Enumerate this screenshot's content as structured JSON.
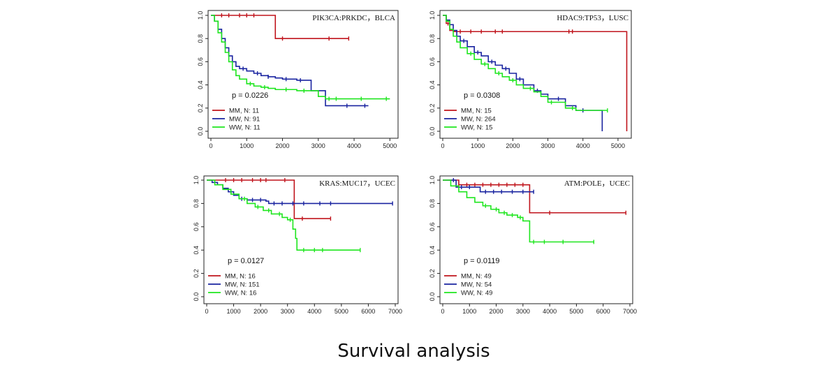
{
  "caption": "Survival analysis",
  "colors": {
    "MM": "#c0141c",
    "MW": "#1a24a0",
    "WW": "#1ee61e",
    "axis": "#222222"
  },
  "chart_data": [
    {
      "type": "line",
      "title": "PIK3CA:PRKDC，BLCA",
      "p_value": "p = 0.0226",
      "xlim": [
        0,
        5000
      ],
      "xticks": [
        0,
        1000,
        2000,
        3000,
        4000,
        5000
      ],
      "ylim": [
        0,
        1
      ],
      "yticks": [
        "0.0",
        "0.2",
        "0.4",
        "0.6",
        "0.8",
        "1.0"
      ],
      "legend": [
        "MM, N: 11",
        "MW, N: 91",
        "WW, N: 11"
      ],
      "series": [
        {
          "key": "MM",
          "x": [
            0,
            1800,
            1800,
            3850
          ],
          "y": [
            1.0,
            1.0,
            0.8,
            0.8
          ],
          "censor_x": [
            300,
            500,
            800,
            1000,
            1200,
            2000,
            3300,
            3850
          ]
        },
        {
          "key": "MW",
          "x": [
            0,
            100,
            200,
            300,
            400,
            500,
            600,
            700,
            800,
            1000,
            1200,
            1400,
            1600,
            1800,
            2000,
            2400,
            2800,
            3000,
            3200,
            3400,
            4400
          ],
          "y": [
            1.0,
            0.95,
            0.88,
            0.8,
            0.72,
            0.65,
            0.6,
            0.56,
            0.54,
            0.52,
            0.5,
            0.48,
            0.47,
            0.46,
            0.45,
            0.44,
            0.35,
            0.35,
            0.22,
            0.22,
            0.22
          ],
          "censor_x": [
            900,
            1300,
            1600,
            2100,
            2500,
            3800,
            4300
          ]
        },
        {
          "key": "WW",
          "x": [
            0,
            100,
            200,
            300,
            400,
            500,
            600,
            700,
            800,
            1000,
            1200,
            1400,
            1600,
            1800,
            2000,
            2400,
            2800,
            3000,
            3200,
            3400,
            5000
          ],
          "y": [
            1.0,
            0.95,
            0.85,
            0.77,
            0.68,
            0.6,
            0.53,
            0.48,
            0.45,
            0.41,
            0.39,
            0.38,
            0.37,
            0.36,
            0.36,
            0.35,
            0.35,
            0.3,
            0.28,
            0.28,
            0.28
          ],
          "censor_x": [
            1100,
            1500,
            2100,
            2600,
            3300,
            3500,
            4200,
            4900
          ]
        }
      ]
    },
    {
      "type": "line",
      "title": "HDAC9:TP53，LUSC",
      "p_value": "p = 0.0308",
      "xlim": [
        0,
        5000
      ],
      "xticks": [
        0,
        1000,
        2000,
        3000,
        4000,
        5000
      ],
      "ylim": [
        0,
        1
      ],
      "yticks": [
        "0.0",
        "0.2",
        "0.4",
        "0.6",
        "0.8",
        "1.0"
      ],
      "legend": [
        "MM, N: 15",
        "MW, N: 264",
        "WW, N: 15"
      ],
      "series": [
        {
          "key": "MM",
          "x": [
            0,
            100,
            200,
            300,
            300,
            5250,
            5250
          ],
          "y": [
            1.0,
            0.93,
            0.87,
            0.87,
            0.86,
            0.86,
            0.0
          ],
          "censor_x": [
            150,
            500,
            800,
            1100,
            1500,
            1700,
            3600,
            3700
          ]
        },
        {
          "key": "MW",
          "x": [
            0,
            100,
            200,
            300,
            400,
            500,
            700,
            900,
            1100,
            1300,
            1500,
            1700,
            1900,
            2100,
            2300,
            2600,
            2800,
            3000,
            3500,
            3800,
            4500,
            4550,
            4550
          ],
          "y": [
            1.0,
            0.96,
            0.92,
            0.87,
            0.82,
            0.78,
            0.73,
            0.68,
            0.65,
            0.6,
            0.57,
            0.54,
            0.5,
            0.45,
            0.4,
            0.35,
            0.32,
            0.28,
            0.22,
            0.18,
            0.18,
            0.18,
            0.0
          ],
          "censor_x": [
            600,
            1000,
            1400,
            1800,
            2200,
            2700,
            3300,
            4000
          ]
        },
        {
          "key": "WW",
          "x": [
            0,
            100,
            200,
            300,
            400,
            500,
            700,
            900,
            1100,
            1300,
            1500,
            1700,
            1900,
            2100,
            2300,
            2600,
            2800,
            3000,
            3500,
            3800,
            4700
          ],
          "y": [
            1.0,
            0.95,
            0.88,
            0.82,
            0.77,
            0.72,
            0.67,
            0.62,
            0.58,
            0.54,
            0.5,
            0.47,
            0.44,
            0.4,
            0.37,
            0.34,
            0.3,
            0.25,
            0.2,
            0.18,
            0.18
          ],
          "censor_x": [
            800,
            1200,
            1600,
            2000,
            2500,
            3100,
            3700,
            4700
          ]
        }
      ]
    },
    {
      "type": "line",
      "title": "KRAS:MUC17，UCEC",
      "p_value": "p = 0.0127",
      "xlim": [
        0,
        7000
      ],
      "xticks": [
        0,
        1000,
        2000,
        3000,
        4000,
        5000,
        6000,
        7000
      ],
      "ylim": [
        0,
        1
      ],
      "yticks": [
        "0.0",
        "0.2",
        "0.4",
        "0.6",
        "0.8",
        "1.0"
      ],
      "legend": [
        "MM, N: 16",
        "MW, N: 151",
        "WW, N: 16"
      ],
      "series": [
        {
          "key": "MM",
          "x": [
            0,
            3250,
            3250,
            3500,
            4600
          ],
          "y": [
            1.0,
            1.0,
            0.67,
            0.67,
            0.67
          ],
          "censor_x": [
            700,
            1000,
            1300,
            1700,
            2000,
            2200,
            2900,
            3550,
            4600
          ]
        },
        {
          "key": "MW",
          "x": [
            0,
            200,
            400,
            600,
            800,
            1000,
            1200,
            1500,
            2200,
            2300,
            6900
          ],
          "y": [
            1.0,
            0.98,
            0.96,
            0.93,
            0.9,
            0.87,
            0.84,
            0.83,
            0.82,
            0.8,
            0.8
          ],
          "censor_x": [
            1300,
            1700,
            2000,
            2500,
            2800,
            3200,
            3600,
            4200,
            4600,
            6900
          ]
        },
        {
          "key": "WW",
          "x": [
            0,
            300,
            600,
            900,
            1200,
            1500,
            1800,
            2100,
            2400,
            2800,
            3000,
            3200,
            3300,
            3350,
            5700
          ],
          "y": [
            1.0,
            0.96,
            0.92,
            0.88,
            0.84,
            0.8,
            0.77,
            0.74,
            0.71,
            0.68,
            0.66,
            0.58,
            0.5,
            0.4,
            0.4
          ],
          "censor_x": [
            1400,
            1900,
            2300,
            2700,
            3100,
            3600,
            4000,
            4300,
            5700
          ]
        }
      ]
    },
    {
      "type": "line",
      "title": "ATM:POLE，UCEC",
      "p_value": "p = 0.0119",
      "xlim": [
        0,
        7000
      ],
      "xticks": [
        0,
        1000,
        2000,
        3000,
        4000,
        5000,
        6000,
        7000
      ],
      "ylim": [
        0,
        1
      ],
      "yticks": [
        "0.0",
        "0.2",
        "0.4",
        "0.6",
        "0.8",
        "1.0"
      ],
      "legend": [
        "MM, N: 49",
        "MW, N: 54",
        "WW, N: 49"
      ],
      "series": [
        {
          "key": "MM",
          "x": [
            0,
            600,
            600,
            3250,
            3250,
            6850
          ],
          "y": [
            1.0,
            1.0,
            0.96,
            0.96,
            0.72,
            0.72
          ],
          "censor_x": [
            900,
            1200,
            1500,
            1800,
            2100,
            2400,
            2700,
            3000,
            4000,
            6850
          ]
        },
        {
          "key": "MW",
          "x": [
            0,
            500,
            500,
            1400,
            1400,
            3400
          ],
          "y": [
            1.0,
            1.0,
            0.94,
            0.94,
            0.9,
            0.9
          ],
          "censor_x": [
            400,
            700,
            1000,
            1600,
            1900,
            2200,
            2600,
            3000,
            3400
          ]
        },
        {
          "key": "WW",
          "x": [
            0,
            300,
            600,
            900,
            1200,
            1500,
            1800,
            2100,
            2400,
            2800,
            3000,
            3250,
            3250,
            5650
          ],
          "y": [
            1.0,
            0.95,
            0.9,
            0.85,
            0.81,
            0.78,
            0.75,
            0.72,
            0.7,
            0.68,
            0.65,
            0.56,
            0.47,
            0.47
          ],
          "censor_x": [
            1600,
            2000,
            2300,
            2600,
            2900,
            3400,
            3800,
            4500,
            5650
          ]
        }
      ]
    }
  ]
}
